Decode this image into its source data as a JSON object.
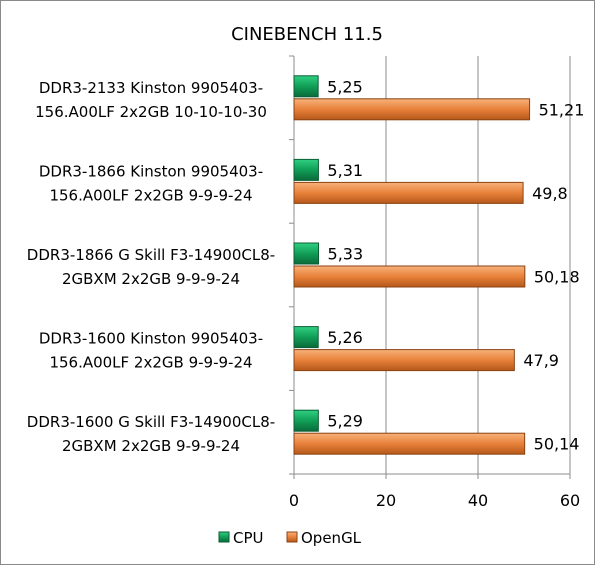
{
  "chart_data": {
    "type": "bar",
    "orientation": "horizontal",
    "title": "CINEBENCH 11.5",
    "xlabel": "",
    "ylabel": "",
    "xlim": [
      0,
      60
    ],
    "ticks": [
      "0",
      "20",
      "40",
      "60"
    ],
    "tick_values": [
      0,
      20,
      40,
      60
    ],
    "grid": "vertical",
    "legend_position": "bottom",
    "categories": [
      [
        "DDR3-2133 Kinston 9905403-",
        "156.A00LF 2x2GB 10-10-10-30"
      ],
      [
        "DDR3-1866 Kinston 9905403-",
        "156.A00LF 2x2GB 9-9-9-24"
      ],
      [
        "DDR3-1866 G Skill F3-14900CL8-",
        "2GBXM 2x2GB 9-9-9-24"
      ],
      [
        "DDR3-1600 Kinston 9905403-",
        "156.A00LF 2x2GB 9-9-9-24"
      ],
      [
        "DDR3-1600 G Skill F3-14900CL8-",
        "2GBXM 2x2GB 9-9-9-24"
      ]
    ],
    "series": [
      {
        "name": "CPU",
        "color": "#119E57",
        "values": [
          5.25,
          5.31,
          5.33,
          5.26,
          5.29
        ],
        "labels": [
          "5,25",
          "5,31",
          "5,33",
          "5,26",
          "5,29"
        ]
      },
      {
        "name": "OpenGL",
        "color": "#E8813A",
        "values": [
          51.21,
          49.8,
          50.18,
          47.9,
          50.14
        ],
        "labels": [
          "51,21",
          "49,8",
          "50,18",
          "47,9",
          "50,14"
        ]
      }
    ]
  }
}
